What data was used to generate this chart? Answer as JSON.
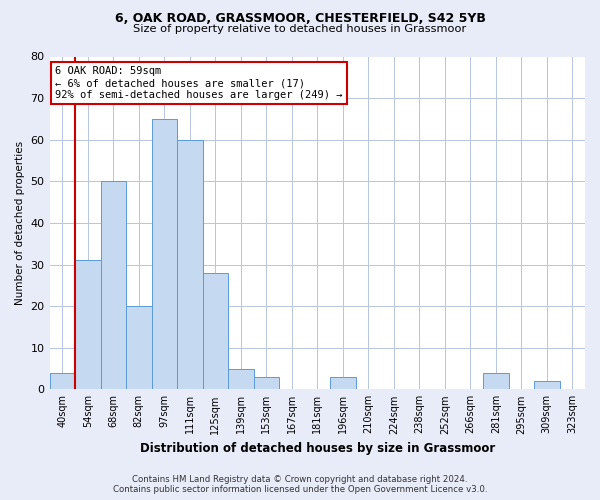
{
  "title1": "6, OAK ROAD, GRASSMOOR, CHESTERFIELD, S42 5YB",
  "title2": "Size of property relative to detached houses in Grassmoor",
  "xlabel": "Distribution of detached houses by size in Grassmoor",
  "ylabel": "Number of detached properties",
  "footer1": "Contains HM Land Registry data © Crown copyright and database right 2024.",
  "footer2": "Contains public sector information licensed under the Open Government Licence v3.0.",
  "annotation_line1": "6 OAK ROAD: 59sqm",
  "annotation_line2": "← 6% of detached houses are smaller (17)",
  "annotation_line3": "92% of semi-detached houses are larger (249) →",
  "bins": [
    "40sqm",
    "54sqm",
    "68sqm",
    "82sqm",
    "97sqm",
    "111sqm",
    "125sqm",
    "139sqm",
    "153sqm",
    "167sqm",
    "181sqm",
    "196sqm",
    "210sqm",
    "224sqm",
    "238sqm",
    "252sqm",
    "266sqm",
    "281sqm",
    "295sqm",
    "309sqm",
    "323sqm"
  ],
  "values": [
    4,
    31,
    50,
    20,
    65,
    60,
    28,
    5,
    3,
    0,
    0,
    3,
    0,
    0,
    0,
    0,
    0,
    4,
    0,
    2,
    0
  ],
  "bar_color": "#c5d9f1",
  "bar_edge_color": "#5b9bd5",
  "vline_color": "#cc0000",
  "annotation_box_color": "#ffffff",
  "annotation_box_edge": "#cc0000",
  "bg_color": "#e8ecf8",
  "plot_bg_color": "#ffffff",
  "grid_color": "#b8c4e0",
  "ylim": [
    0,
    80
  ],
  "yticks": [
    0,
    10,
    20,
    30,
    40,
    50,
    60,
    70,
    80
  ],
  "vline_pos": 0.5
}
